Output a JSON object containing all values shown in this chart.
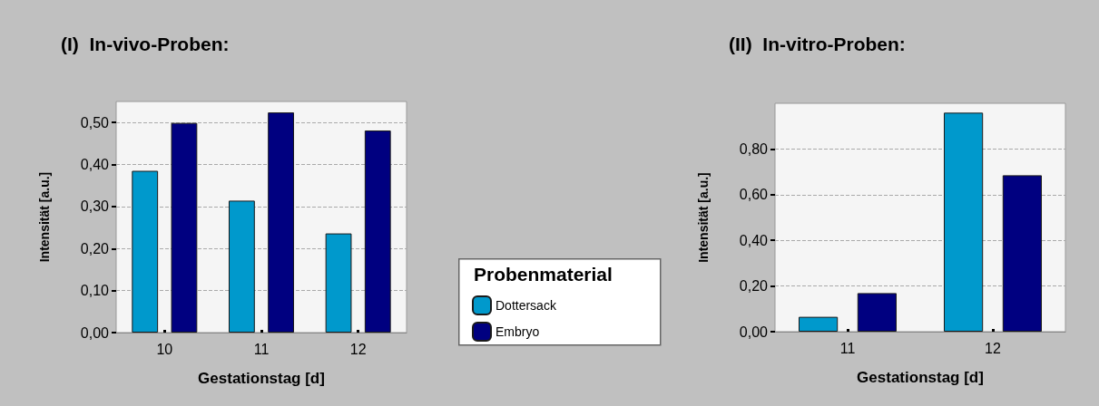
{
  "chart_data": [
    {
      "type": "bar",
      "title": "(I)  In-vivo-Proben:",
      "xlabel": "Gestationstag [d]",
      "ylabel": "Intensität [a.u.]",
      "categories": [
        "10",
        "11",
        "12"
      ],
      "legend": "right",
      "legend_title": "Probenmaterial",
      "series": [
        {
          "name": "Dottersack",
          "color": "#0099cc",
          "values": [
            0.385,
            0.314,
            0.236
          ]
        },
        {
          "name": "Embryo",
          "color": "#000080",
          "values": [
            0.499,
            0.524,
            0.481
          ]
        }
      ],
      "ylim": [
        0,
        0.55
      ],
      "yticks": [
        {
          "value": 0,
          "label": "0,00"
        },
        {
          "value": 0.1,
          "label": "0,10"
        },
        {
          "value": 0.2,
          "label": "0,20"
        },
        {
          "value": 0.3,
          "label": "0,30"
        },
        {
          "value": 0.4,
          "label": "0,40"
        },
        {
          "value": 0.5,
          "label": "0,50"
        }
      ],
      "grid": "y"
    },
    {
      "type": "bar",
      "title": "(II)  In-vitro-Proben:",
      "xlabel": "Gestationstag [d]",
      "ylabel": "Intensität [a.u.]",
      "categories": [
        "11",
        "12"
      ],
      "series": [
        {
          "color": "#0099cc",
          "values": [
            0.065,
            0.959
          ]
        },
        {
          "color": "#000080",
          "values": [
            0.169,
            0.685
          ]
        }
      ],
      "ylim": [
        0,
        1.0
      ],
      "yticks": [
        {
          "value": 0,
          "label": "0,00"
        },
        {
          "value": 0.2,
          "label": "0,20"
        },
        {
          "value": 0.4,
          "label": "0,40"
        },
        {
          "value": 0.6,
          "label": "0,60"
        },
        {
          "value": 0.8,
          "label": "0,80"
        }
      ],
      "grid": "y"
    }
  ]
}
